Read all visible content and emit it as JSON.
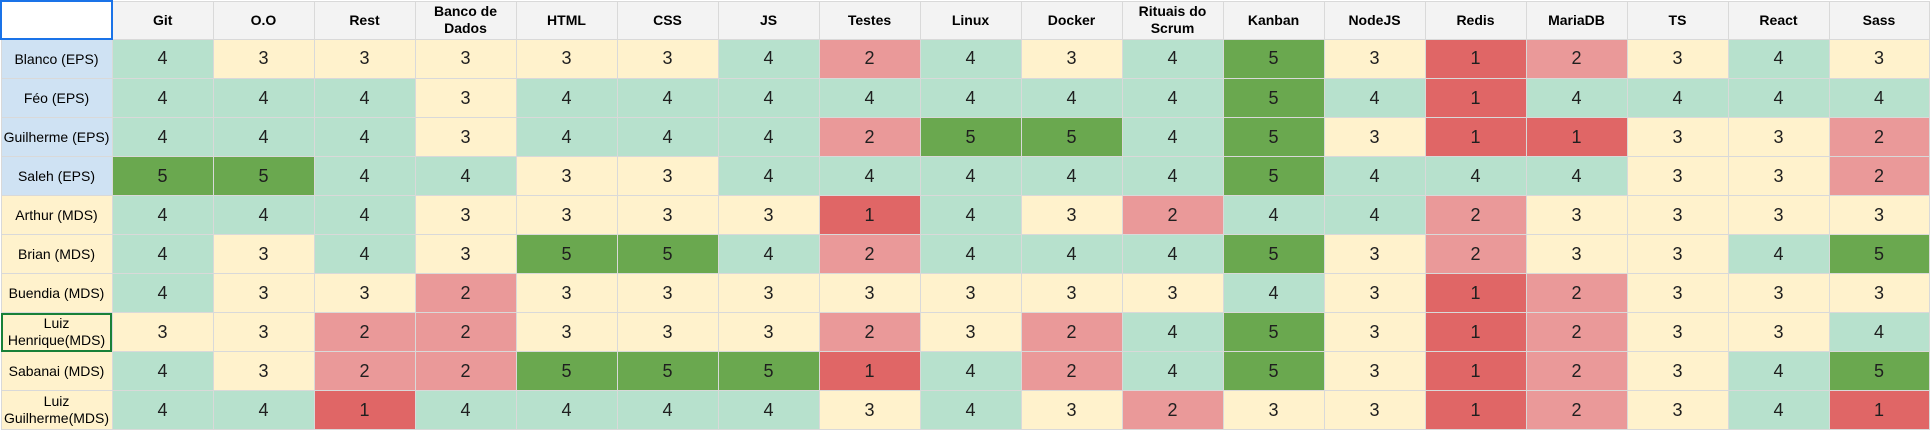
{
  "sheet": {
    "columns": [
      "Git",
      "O.O",
      "Rest",
      "Banco de Dados",
      "HTML",
      "CSS",
      "JS",
      "Testes",
      "Linux",
      "Docker",
      "Rituais do Scrum",
      "Kanban",
      "NodeJS",
      "Redis",
      "MariaDB",
      "TS",
      "React",
      "Sass"
    ],
    "rows": [
      {
        "name": "Blanco (EPS)",
        "group": "EPS",
        "values": [
          4,
          3,
          3,
          3,
          3,
          3,
          4,
          2,
          4,
          3,
          4,
          5,
          3,
          1,
          2,
          3,
          4,
          3
        ]
      },
      {
        "name": "Féo (EPS)",
        "group": "EPS",
        "values": [
          4,
          4,
          4,
          3,
          4,
          4,
          4,
          4,
          4,
          4,
          4,
          5,
          4,
          1,
          4,
          4,
          4,
          4
        ]
      },
      {
        "name": "Guilherme (EPS)",
        "group": "EPS",
        "values": [
          4,
          4,
          4,
          3,
          4,
          4,
          4,
          2,
          5,
          5,
          4,
          5,
          3,
          1,
          1,
          3,
          3,
          2
        ]
      },
      {
        "name": "Saleh (EPS)",
        "group": "EPS",
        "values": [
          5,
          5,
          4,
          4,
          3,
          3,
          4,
          4,
          4,
          4,
          4,
          5,
          4,
          4,
          4,
          3,
          3,
          2
        ]
      },
      {
        "name": "Arthur (MDS)",
        "group": "MDS",
        "values": [
          4,
          4,
          4,
          3,
          3,
          3,
          3,
          1,
          4,
          3,
          2,
          4,
          4,
          2,
          3,
          3,
          3,
          3
        ]
      },
      {
        "name": "Brian (MDS)",
        "group": "MDS",
        "values": [
          4,
          3,
          4,
          3,
          5,
          5,
          4,
          2,
          4,
          4,
          4,
          5,
          3,
          2,
          3,
          3,
          4,
          5
        ]
      },
      {
        "name": "Buendia (MDS)",
        "group": "MDS",
        "values": [
          4,
          3,
          3,
          2,
          3,
          3,
          3,
          3,
          3,
          3,
          3,
          4,
          3,
          1,
          2,
          3,
          3,
          3
        ]
      },
      {
        "name": "Luiz Henrique(MDS)",
        "group": "MDS",
        "values": [
          3,
          3,
          2,
          2,
          3,
          3,
          3,
          2,
          3,
          2,
          4,
          5,
          3,
          1,
          2,
          3,
          3,
          4
        ]
      },
      {
        "name": "Sabanai (MDS)",
        "group": "MDS",
        "values": [
          4,
          3,
          2,
          2,
          5,
          5,
          5,
          1,
          4,
          2,
          4,
          5,
          3,
          1,
          2,
          3,
          4,
          5
        ]
      },
      {
        "name": "Luiz Guilherme(MDS)",
        "group": "MDS",
        "values": [
          4,
          4,
          1,
          4,
          4,
          4,
          4,
          3,
          4,
          3,
          2,
          3,
          3,
          1,
          2,
          3,
          4,
          1
        ]
      }
    ],
    "selected_row": 7
  },
  "colors": {
    "score_1": "#e06666",
    "score_2": "#ea9999",
    "score_3": "#fff2cc",
    "score_4": "#b7e1cd",
    "score_5": "#6aa84f",
    "group_EPS": "#cfe2f3",
    "group_MDS": "#fff2cc",
    "header": "#f3f3f3"
  }
}
